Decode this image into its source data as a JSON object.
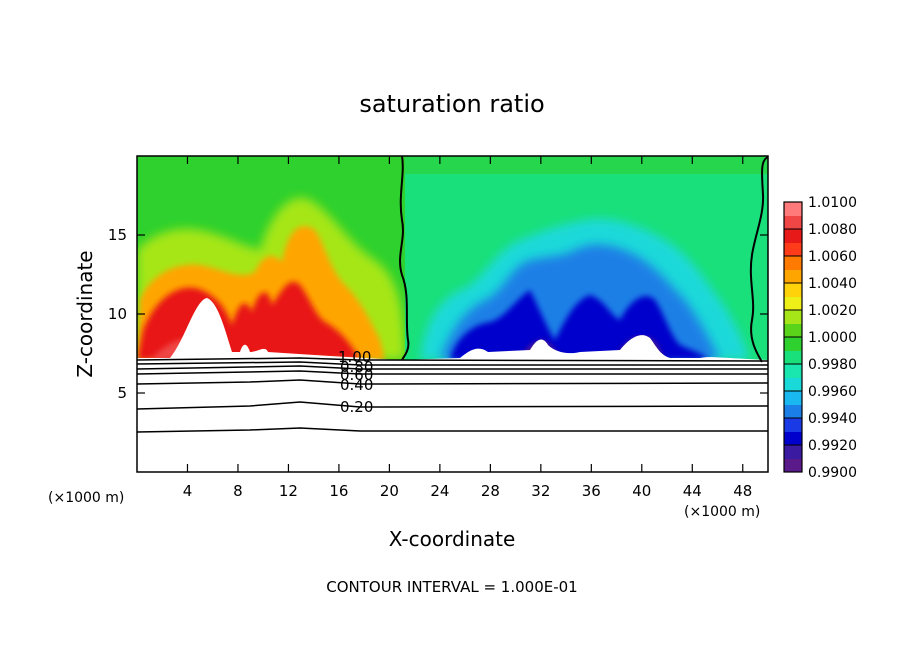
{
  "chart_data": {
    "type": "heatmap",
    "title": "saturation ratio",
    "xlabel": "X-coordinate",
    "ylabel": "Z-coordinate",
    "x_unit": "(×1000 m)",
    "x_unit_right": "(×1000 m)",
    "xlim": [
      0,
      50
    ],
    "ylim": [
      0,
      20
    ],
    "x_ticks": [
      4,
      8,
      12,
      16,
      20,
      24,
      28,
      32,
      36,
      40,
      44,
      48
    ],
    "y_ticks": [
      5,
      10,
      15
    ],
    "colorbar": {
      "levels": [
        "1.0100",
        "1.0080",
        "1.0060",
        "1.0040",
        "1.0020",
        "1.0000",
        "0.9980",
        "0.9960",
        "0.9940",
        "0.9920",
        "0.9900"
      ],
      "colors": [
        "#5a1a8a",
        "#3a1aa0",
        "#0000cc",
        "#1a3ae6",
        "#1a7fe6",
        "#19b8f0",
        "#1ad9d9",
        "#1ae6b0",
        "#19e07a",
        "#2ed12e",
        "#5ad41a",
        "#a6e619",
        "#f0f019",
        "#ffd20a",
        "#ffa500",
        "#ff7a00",
        "#ff3c1a",
        "#e81919",
        "#f04646",
        "#ff7a7a"
      ]
    },
    "contour_labels": [
      "1.00",
      "0.80",
      "0.60",
      "0.40",
      "0.20"
    ],
    "note": "CONTOUR INTERVAL = 1.000E-01"
  }
}
